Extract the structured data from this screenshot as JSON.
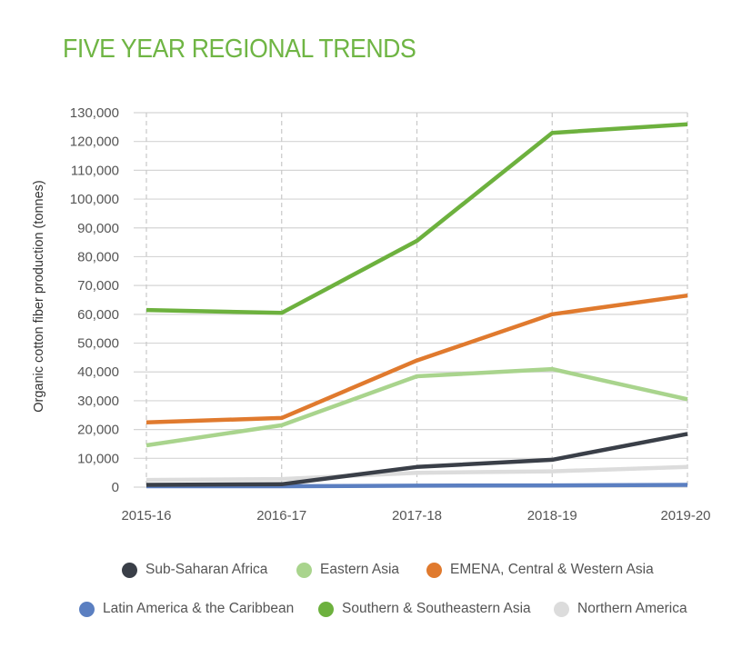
{
  "chart_data": {
    "type": "line",
    "title": "FIVE YEAR REGIONAL TRENDS",
    "xlabel": "",
    "ylabel": "Organic cotton fiber production (tonnes)",
    "categories": [
      "2015-16",
      "2016-17",
      "2017-18",
      "2018-19",
      "2019-20"
    ],
    "ylim": [
      0,
      130000
    ],
    "yticks": [
      0,
      10000,
      20000,
      30000,
      40000,
      50000,
      60000,
      70000,
      80000,
      90000,
      100000,
      110000,
      120000,
      130000
    ],
    "ytick_labels": [
      "0",
      "10,000",
      "20,000",
      "30,000",
      "40,000",
      "50,000",
      "60,000",
      "70,000",
      "80,000",
      "90,000",
      "100,000",
      "110,000",
      "120,000",
      "130,000"
    ],
    "grid": "horizontal solid, vertical dashed",
    "legend_position": "bottom",
    "series": [
      {
        "name": "Northern America",
        "color": "#dcdcdc",
        "values": [
          2500,
          2800,
          5000,
          5500,
          7000
        ]
      },
      {
        "name": "Latin America & the Caribbean",
        "color": "#5b7fc1",
        "values": [
          300,
          300,
          500,
          600,
          800
        ]
      },
      {
        "name": "Sub-Saharan Africa",
        "color": "#3a3f48",
        "values": [
          800,
          1000,
          7000,
          9500,
          18500
        ]
      },
      {
        "name": "Eastern Asia",
        "color": "#a9d48d",
        "values": [
          14500,
          21500,
          38500,
          41000,
          30500
        ]
      },
      {
        "name": "EMENA, Central & Western Asia",
        "color": "#e07a2e",
        "values": [
          22500,
          24000,
          44000,
          60000,
          66500
        ]
      },
      {
        "name": "Southern & Southeastern Asia",
        "color": "#6db13e",
        "values": [
          61500,
          60500,
          85500,
          123000,
          126000
        ]
      }
    ],
    "legend_order": [
      "Sub-Saharan Africa",
      "Eastern Asia",
      "EMENA, Central & Western Asia",
      "Latin America & the Caribbean",
      "Southern & Southeastern Asia",
      "Northern America"
    ]
  }
}
